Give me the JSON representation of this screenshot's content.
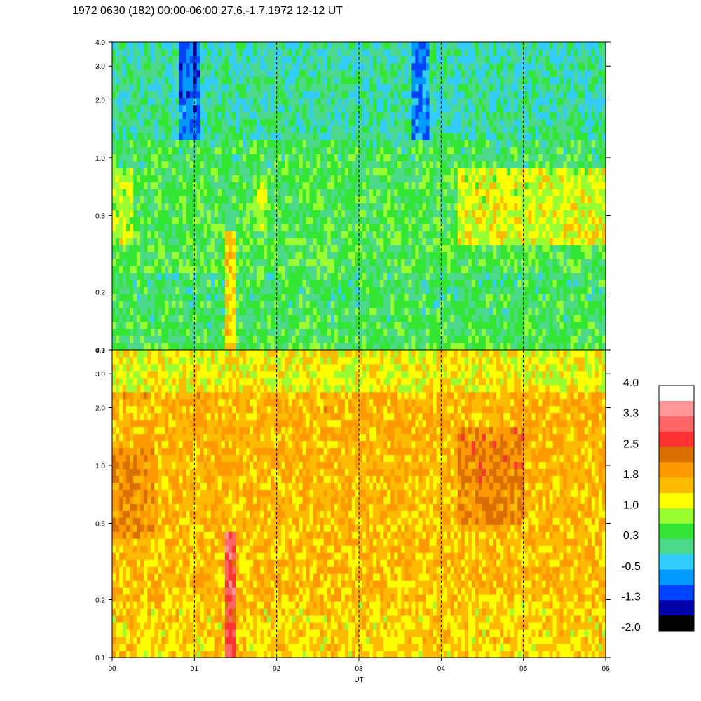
{
  "chart_data": {
    "type": "heatmap",
    "title": "1972 0630 (182) 00:00-06:00 27.6.-1.7.1972  12-12 UT",
    "xlabel": "UT",
    "x_ticks": [
      "00",
      "01",
      "02",
      "03",
      "04",
      "05",
      "06"
    ],
    "x_range_hours": [
      0,
      6
    ],
    "dashed_hour_lines": [
      1,
      2,
      3,
      4,
      5
    ],
    "y_scale": "log",
    "y_range": [
      0.1,
      4.0
    ],
    "y_ticks": [
      "0.1",
      "0.2",
      "0.5",
      "1.0",
      "2.0",
      "3.0",
      "4.0"
    ],
    "y_tick_values": [
      0.1,
      0.2,
      0.5,
      1.0,
      2.0,
      3.0,
      4.0
    ],
    "panels": [
      {
        "id": "upper",
        "dominant_level_range": [
          -0.5,
          1.8
        ],
        "description_levels": "mostly 0.3 to 1.0, blue near top around 01 and 03:45, orange near 0.5 after 04"
      },
      {
        "id": "lower",
        "dominant_level_range": [
          1.0,
          2.5
        ],
        "description_levels": "mostly 1.4 to 2.2, red streak near 01:25 below 0.5"
      }
    ],
    "colorbar": {
      "labels": [
        "4.0",
        "3.3",
        "2.5",
        "1.8",
        "1.0",
        "0.3",
        "-0.5",
        "-1.3",
        "-2.0"
      ],
      "colors": [
        "#ffffff",
        "#ff9999",
        "#ff6666",
        "#ff3333",
        "#d97000",
        "#ff9900",
        "#ffbb00",
        "#ffff00",
        "#99ff33",
        "#33e633",
        "#4dd98c",
        "#33ccff",
        "#0099ff",
        "#0044ff",
        "#0000aa",
        "#000000"
      ]
    }
  }
}
